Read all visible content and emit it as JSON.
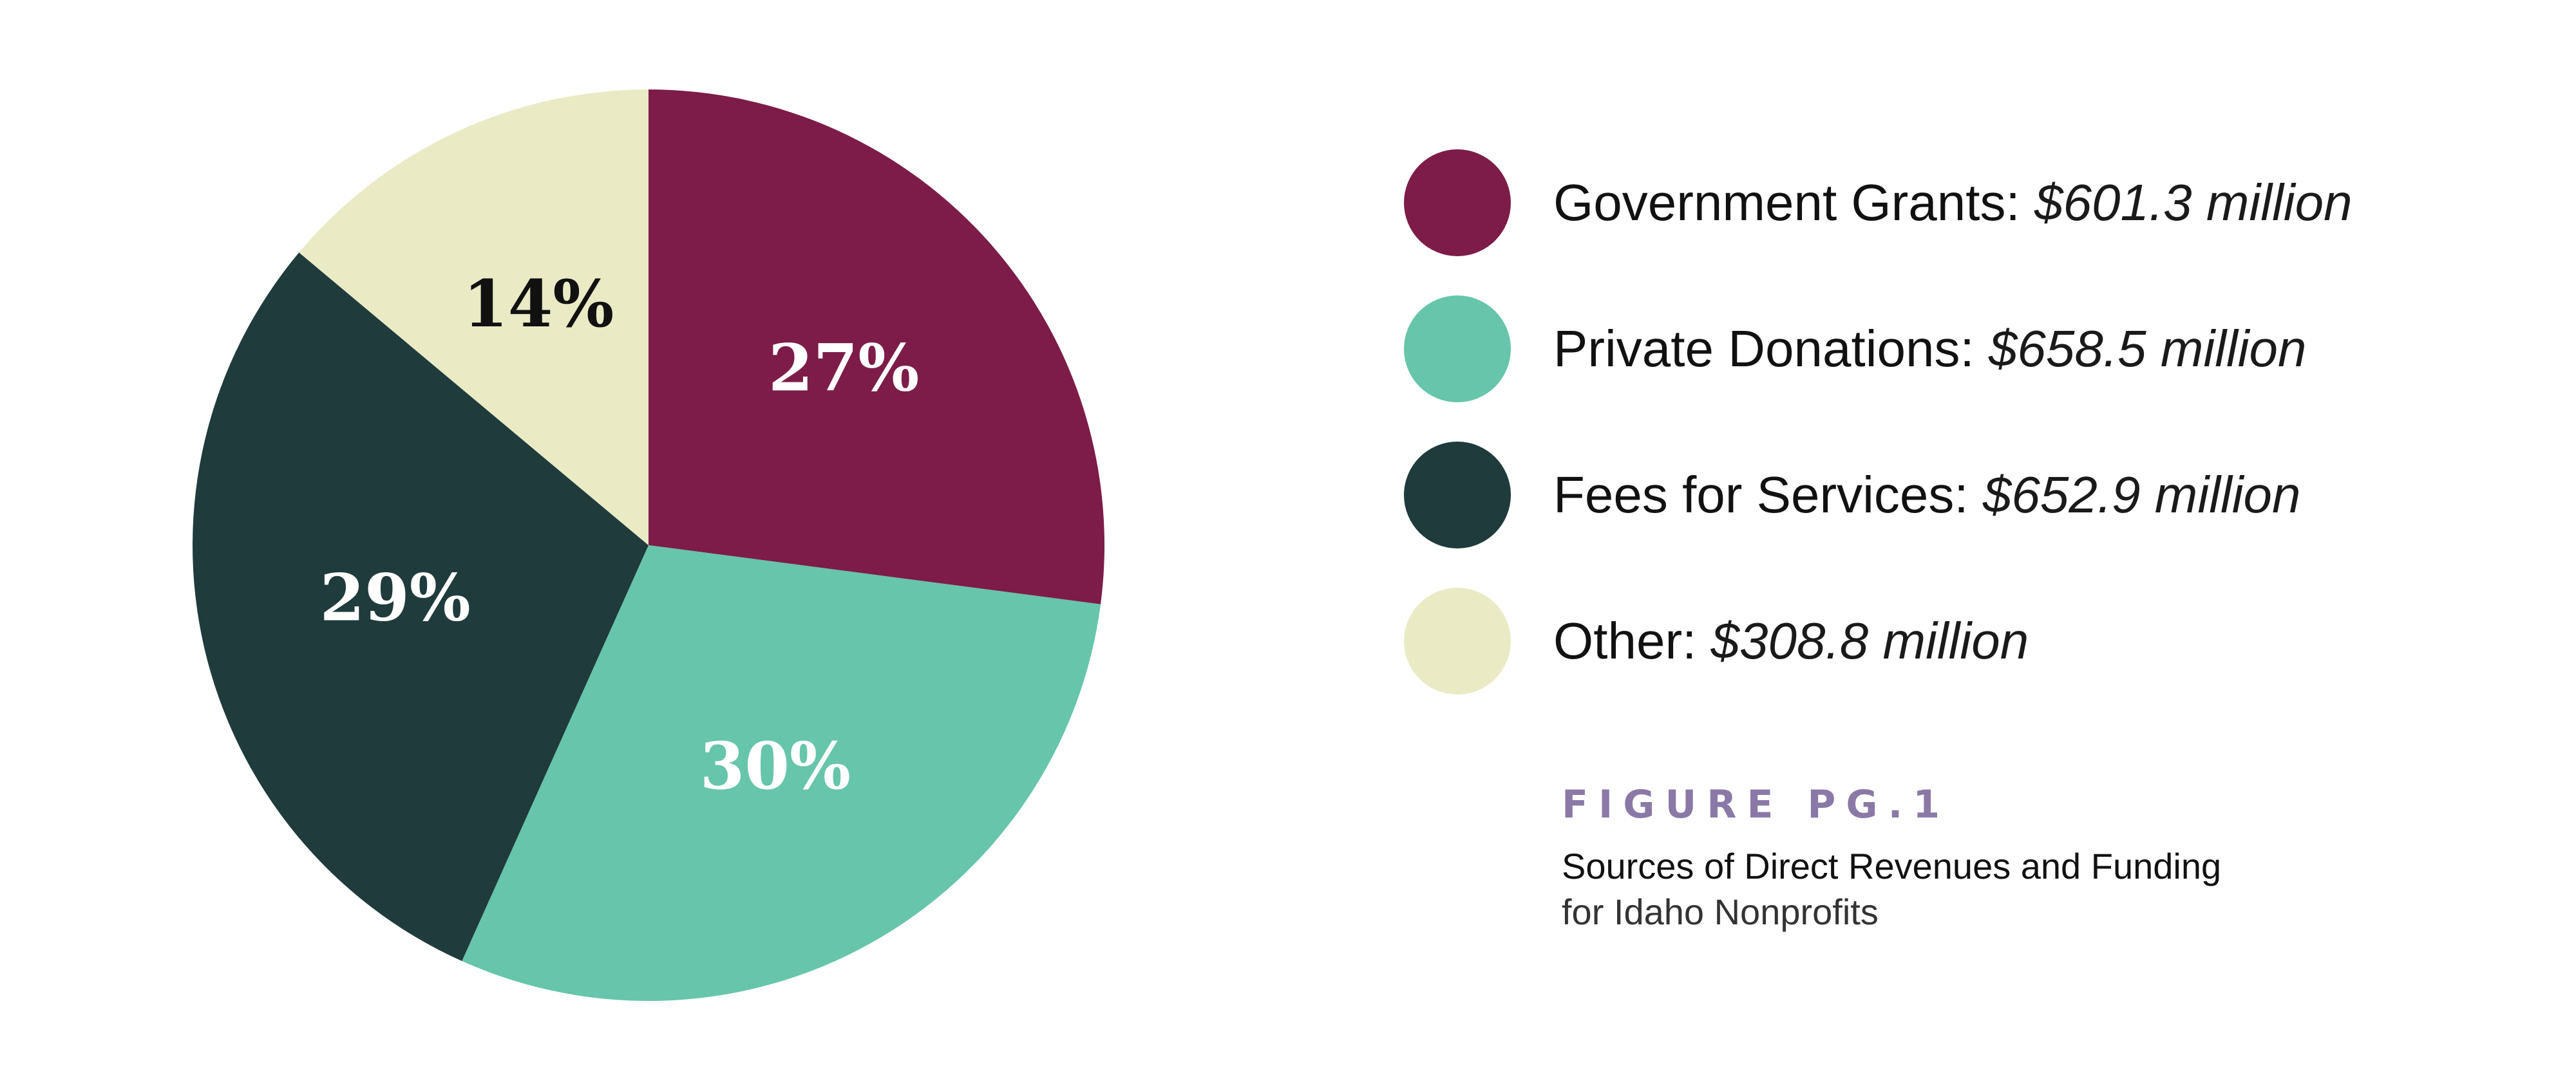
{
  "chart_data": {
    "type": "pie",
    "slices": [
      {
        "label": "Government Grants",
        "value_text": "$601.3 million",
        "percent": 27,
        "percent_label": "27%",
        "color": "#7d1c48",
        "label_color": "#ffffff"
      },
      {
        "label": "Private Donations",
        "value_text": "$658.5 million",
        "percent": 30,
        "percent_label": "30%",
        "color": "#66c5aa",
        "label_color": "#ffffff"
      },
      {
        "label": "Fees for Services",
        "value_text": "$652.9 million",
        "percent": 29,
        "percent_label": "29%",
        "color": "#1f3b3c",
        "label_color": "#ffffff"
      },
      {
        "label": "Other",
        "value_text": "$308.8 million",
        "percent": 14,
        "percent_label": "14%",
        "color": "#eaebc5",
        "label_color": "#111111"
      }
    ],
    "values_millions": [
      601.3,
      658.5,
      652.9,
      308.8
    ],
    "start_angle": "12 o'clock",
    "direction": "clockwise",
    "legend_position": "right"
  },
  "legend": [
    {
      "name": "Government Grants:",
      "value": "$601.3 million",
      "color": "#7d1c48"
    },
    {
      "name": "Private Donations:",
      "value": "$658.5 million",
      "color": "#66c5aa"
    },
    {
      "name": "Fees for Services:",
      "value": "$652.9 million",
      "color": "#1f3b3c"
    },
    {
      "name": "Other:",
      "value": "$308.8 million",
      "color": "#eaebc5"
    }
  ],
  "figure": {
    "label": "FIGURE PG.1",
    "title_line1": "Sources of Direct Revenues and Funding",
    "title_line2": "for Idaho Nonprofits"
  }
}
